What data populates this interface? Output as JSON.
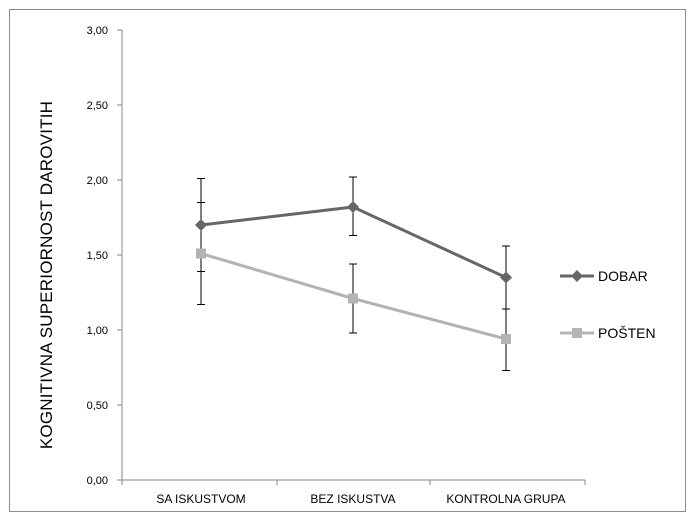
{
  "chart_data": {
    "type": "line",
    "categories": [
      "SA ISKUSTVOM",
      "BEZ ISKUSTVA",
      "KONTROLNA GRUPA"
    ],
    "ylabel": "KOGNITIVNA SUPERIORNOST DAROVITIH",
    "ylim": [
      0,
      3
    ],
    "yticks": [
      "0,00",
      "0,50",
      "1,00",
      "1,50",
      "2,00",
      "2,50",
      "3,00"
    ],
    "grid": false,
    "legend_position": "right",
    "series": [
      {
        "name": "DOBAR",
        "values": [
          1.7,
          1.82,
          1.35
        ],
        "error_low": [
          1.39,
          1.63,
          1.14
        ],
        "error_high": [
          2.01,
          2.02,
          1.56
        ],
        "marker": "diamond",
        "color": "#666666"
      },
      {
        "name": "POŠTEN",
        "values": [
          1.51,
          1.21,
          0.94
        ],
        "error_low": [
          1.17,
          0.98,
          0.73
        ],
        "error_high": [
          1.85,
          1.44,
          1.14
        ],
        "marker": "square",
        "color": "#b3b3b3"
      }
    ]
  }
}
